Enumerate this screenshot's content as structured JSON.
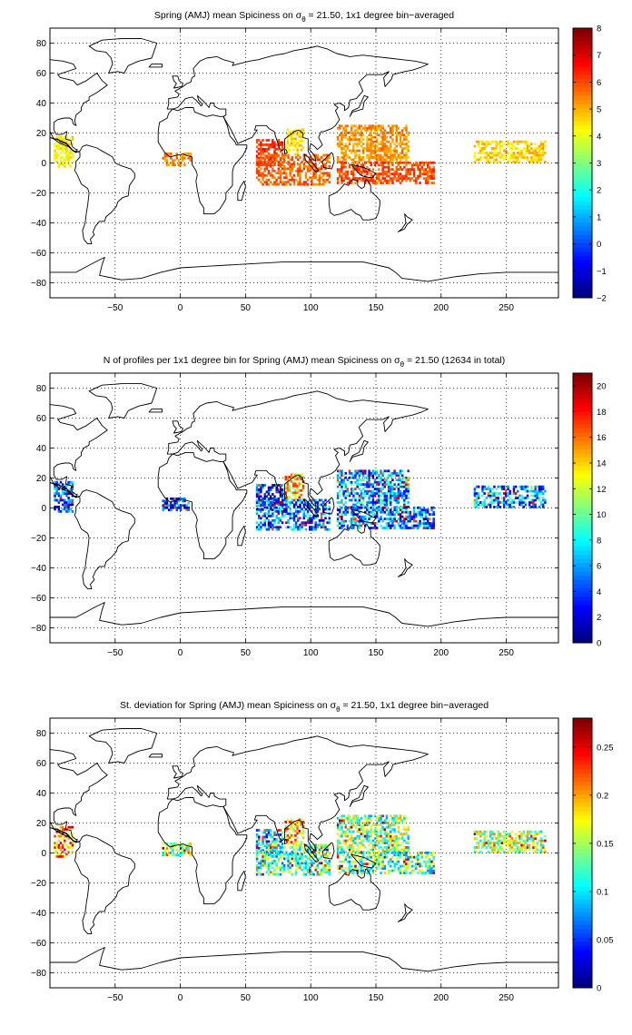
{
  "figure": {
    "background": "#ffffff",
    "land_outline_color": "#000000",
    "grid_style": "dotted",
    "colormap": "jet"
  },
  "chart_data": [
    {
      "type": "heatmap",
      "title_prefix": "Spring (AMJ) mean Spiciness on σ",
      "title_sub": "θ",
      "title_suffix": " = 21.50, 1x1 degree bin−averaged",
      "xticks": [
        -50,
        0,
        50,
        100,
        150,
        200,
        250
      ],
      "yticks": [
        -80,
        -60,
        -40,
        -20,
        0,
        20,
        40,
        60,
        80
      ],
      "xlim": [
        -100,
        290
      ],
      "ylim": [
        -90,
        90
      ],
      "grid": true,
      "colorbar": {
        "min": -2,
        "max": 8,
        "ticks": [
          -2,
          -1,
          0,
          1,
          2,
          3,
          4,
          5,
          6,
          7,
          8
        ],
        "position": "right"
      },
      "regions": [
        {
          "name": "east-pacific",
          "lon": [
            -97,
            -82
          ],
          "lat": [
            -3,
            17
          ],
          "value": 4.3
        },
        {
          "name": "gulf-of-guinea",
          "lon": [
            -14,
            8
          ],
          "lat": [
            -2,
            6
          ],
          "value": 5.4
        },
        {
          "name": "bay-of-bengal",
          "lon": [
            80,
            95
          ],
          "lat": [
            5,
            22
          ],
          "value": 4.6
        },
        {
          "name": "arabian-sea",
          "lon": [
            58,
            78
          ],
          "lat": [
            -2,
            15
          ],
          "value": 6.3
        },
        {
          "name": "equatorial-indian-ocean",
          "lon": [
            58,
            115
          ],
          "lat": [
            -15,
            5
          ],
          "value": 5.8
        },
        {
          "name": "west-pacific-warm-pool",
          "lon": [
            120,
            175
          ],
          "lat": [
            0,
            25
          ],
          "value": 5.3
        },
        {
          "name": "south-west-pacific",
          "lon": [
            120,
            195
          ],
          "lat": [
            -14,
            0
          ],
          "value": 6.0
        },
        {
          "name": "central-east-pacific",
          "lon": [
            225,
            280
          ],
          "lat": [
            0,
            15
          ],
          "value": 4.7
        }
      ]
    },
    {
      "type": "heatmap",
      "title_prefix": "N of profiles per 1x1 degree bin for Spring (AMJ) mean Spiciness on σ",
      "title_sub": "θ",
      "title_suffix": " = 21.50 (12634 in total)",
      "xticks": [
        -50,
        0,
        50,
        100,
        150,
        200,
        250
      ],
      "yticks": [
        -80,
        -60,
        -40,
        -20,
        0,
        20,
        40,
        60,
        80
      ],
      "xlim": [
        -100,
        290
      ],
      "ylim": [
        -90,
        90
      ],
      "grid": true,
      "colorbar": {
        "min": 0,
        "max": 21,
        "ticks": [
          0,
          2,
          4,
          6,
          8,
          10,
          12,
          14,
          16,
          18,
          20
        ],
        "position": "right"
      },
      "regions": [
        {
          "name": "east-pacific",
          "lon": [
            -97,
            -82
          ],
          "lat": [
            -3,
            17
          ],
          "value": 4
        },
        {
          "name": "gulf-of-guinea",
          "lon": [
            -14,
            8
          ],
          "lat": [
            -2,
            6
          ],
          "value": 3
        },
        {
          "name": "bay-of-bengal",
          "lon": [
            80,
            95
          ],
          "lat": [
            5,
            22
          ],
          "value": 14
        },
        {
          "name": "arabian-sea",
          "lon": [
            58,
            78
          ],
          "lat": [
            -2,
            15
          ],
          "value": 3
        },
        {
          "name": "equatorial-indian-ocean",
          "lon": [
            58,
            115
          ],
          "lat": [
            -15,
            5
          ],
          "value": 5
        },
        {
          "name": "west-pacific-warm-pool",
          "lon": [
            120,
            175
          ],
          "lat": [
            0,
            25
          ],
          "value": 6
        },
        {
          "name": "south-west-pacific",
          "lon": [
            120,
            195
          ],
          "lat": [
            -14,
            0
          ],
          "value": 5
        },
        {
          "name": "central-east-pacific",
          "lon": [
            225,
            280
          ],
          "lat": [
            0,
            15
          ],
          "value": 6
        }
      ]
    },
    {
      "type": "heatmap",
      "title_prefix": "St. deviation for Spring (AMJ) mean Spiciness on σ",
      "title_sub": "θ",
      "title_suffix": " = 21.50, 1x1 degree bin−averaged",
      "xticks": [
        -50,
        0,
        50,
        100,
        150,
        200,
        250
      ],
      "yticks": [
        -80,
        -60,
        -40,
        -20,
        0,
        20,
        40,
        60,
        80
      ],
      "xlim": [
        -100,
        290
      ],
      "ylim": [
        -90,
        90
      ],
      "grid": true,
      "colorbar": {
        "min": 0,
        "max": 0.28,
        "ticks": [
          0,
          0.05,
          0.1,
          0.15,
          0.2,
          0.25
        ],
        "position": "right"
      },
      "regions": [
        {
          "name": "east-pacific",
          "lon": [
            -97,
            -82
          ],
          "lat": [
            -3,
            17
          ],
          "value": 0.2
        },
        {
          "name": "gulf-of-guinea",
          "lon": [
            -14,
            8
          ],
          "lat": [
            -2,
            6
          ],
          "value": 0.15
        },
        {
          "name": "bay-of-bengal",
          "lon": [
            80,
            95
          ],
          "lat": [
            5,
            22
          ],
          "value": 0.2
        },
        {
          "name": "arabian-sea",
          "lon": [
            58,
            78
          ],
          "lat": [
            -2,
            15
          ],
          "value": 0.08
        },
        {
          "name": "equatorial-indian-ocean",
          "lon": [
            58,
            115
          ],
          "lat": [
            -15,
            5
          ],
          "value": 0.12
        },
        {
          "name": "west-pacific-warm-pool",
          "lon": [
            120,
            175
          ],
          "lat": [
            0,
            25
          ],
          "value": 0.14
        },
        {
          "name": "south-west-pacific",
          "lon": [
            120,
            195
          ],
          "lat": [
            -14,
            0
          ],
          "value": 0.13
        },
        {
          "name": "central-east-pacific",
          "lon": [
            225,
            280
          ],
          "lat": [
            0,
            15
          ],
          "value": 0.15
        }
      ]
    }
  ]
}
